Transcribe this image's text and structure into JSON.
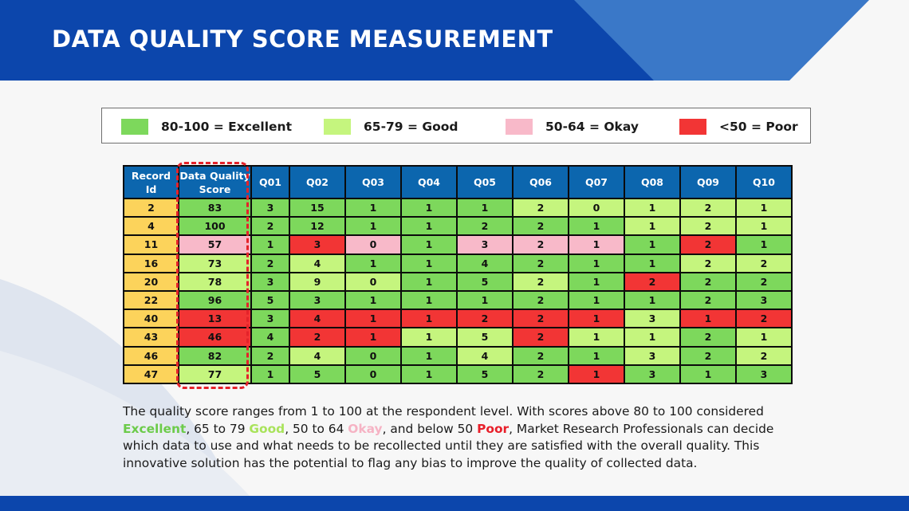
{
  "title": "DATA QUALITY SCORE MEASUREMENT",
  "colors": {
    "header_blue": "#0c46ac",
    "table_header": "#0c66ae",
    "record_id": "#fcd35b",
    "excellent": "#7dd85c",
    "good": "#c5f57e",
    "okay": "#f8b9c9",
    "poor": "#f23535",
    "highlight": "#e5222a"
  },
  "legend": [
    {
      "label": "80-100 = Excellent",
      "class": "c-ex"
    },
    {
      "label": "65-79 = Good",
      "class": "c-gd"
    },
    {
      "label": "50-64 = Okay",
      "class": "c-ok"
    },
    {
      "label": "<50 = Poor",
      "class": "c-pr"
    }
  ],
  "table": {
    "headers": [
      "Record Id",
      "Data Quality Score",
      "Q01",
      "Q02",
      "Q03",
      "Q04",
      "Q05",
      "Q06",
      "Q07",
      "Q08",
      "Q09",
      "Q10"
    ],
    "rows": [
      {
        "id": "2",
        "cells": [
          [
            "83",
            "ex"
          ],
          [
            "3",
            "ex"
          ],
          [
            "15",
            "ex"
          ],
          [
            "1",
            "ex"
          ],
          [
            "1",
            "ex"
          ],
          [
            "1",
            "ex"
          ],
          [
            "2",
            "gd"
          ],
          [
            "0",
            "gd"
          ],
          [
            "1",
            "gd"
          ],
          [
            "2",
            "gd"
          ],
          [
            "1",
            "gd"
          ]
        ]
      },
      {
        "id": "4",
        "cells": [
          [
            "100",
            "ex"
          ],
          [
            "2",
            "ex"
          ],
          [
            "12",
            "ex"
          ],
          [
            "1",
            "ex"
          ],
          [
            "1",
            "ex"
          ],
          [
            "2",
            "ex"
          ],
          [
            "2",
            "ex"
          ],
          [
            "1",
            "ex"
          ],
          [
            "1",
            "gd"
          ],
          [
            "2",
            "gd"
          ],
          [
            "1",
            "gd"
          ]
        ]
      },
      {
        "id": "11",
        "cells": [
          [
            "57",
            "ok"
          ],
          [
            "1",
            "ex"
          ],
          [
            "3",
            "pr"
          ],
          [
            "0",
            "ok"
          ],
          [
            "1",
            "ex"
          ],
          [
            "3",
            "ok"
          ],
          [
            "2",
            "ok"
          ],
          [
            "1",
            "ok"
          ],
          [
            "1",
            "ex"
          ],
          [
            "2",
            "pr"
          ],
          [
            "1",
            "ex"
          ]
        ]
      },
      {
        "id": "16",
        "cells": [
          [
            "73",
            "gd"
          ],
          [
            "2",
            "ex"
          ],
          [
            "4",
            "gd"
          ],
          [
            "1",
            "ex"
          ],
          [
            "1",
            "ex"
          ],
          [
            "4",
            "ex"
          ],
          [
            "2",
            "ex"
          ],
          [
            "1",
            "ex"
          ],
          [
            "1",
            "ex"
          ],
          [
            "2",
            "gd"
          ],
          [
            "2",
            "gd"
          ]
        ]
      },
      {
        "id": "20",
        "cells": [
          [
            "78",
            "gd"
          ],
          [
            "3",
            "ex"
          ],
          [
            "9",
            "gd"
          ],
          [
            "0",
            "gd"
          ],
          [
            "1",
            "ex"
          ],
          [
            "5",
            "ex"
          ],
          [
            "2",
            "gd"
          ],
          [
            "1",
            "ex"
          ],
          [
            "2",
            "pr"
          ],
          [
            "2",
            "ex"
          ],
          [
            "2",
            "ex"
          ]
        ]
      },
      {
        "id": "22",
        "cells": [
          [
            "96",
            "ex"
          ],
          [
            "5",
            "ex"
          ],
          [
            "3",
            "ex"
          ],
          [
            "1",
            "ex"
          ],
          [
            "1",
            "ex"
          ],
          [
            "1",
            "ex"
          ],
          [
            "2",
            "ex"
          ],
          [
            "1",
            "ex"
          ],
          [
            "1",
            "ex"
          ],
          [
            "2",
            "ex"
          ],
          [
            "3",
            "ex"
          ]
        ]
      },
      {
        "id": "40",
        "cells": [
          [
            "13",
            "pr"
          ],
          [
            "3",
            "ex"
          ],
          [
            "4",
            "pr"
          ],
          [
            "1",
            "pr"
          ],
          [
            "1",
            "pr"
          ],
          [
            "2",
            "pr"
          ],
          [
            "2",
            "pr"
          ],
          [
            "1",
            "pr"
          ],
          [
            "3",
            "gd"
          ],
          [
            "1",
            "pr"
          ],
          [
            "2",
            "pr"
          ]
        ]
      },
      {
        "id": "43",
        "cells": [
          [
            "46",
            "pr"
          ],
          [
            "4",
            "ex"
          ],
          [
            "2",
            "pr"
          ],
          [
            "1",
            "pr"
          ],
          [
            "1",
            "gd"
          ],
          [
            "5",
            "gd"
          ],
          [
            "2",
            "pr"
          ],
          [
            "1",
            "gd"
          ],
          [
            "1",
            "gd"
          ],
          [
            "2",
            "ex"
          ],
          [
            "1",
            "gd"
          ]
        ]
      },
      {
        "id": "46",
        "cells": [
          [
            "82",
            "ex"
          ],
          [
            "2",
            "ex"
          ],
          [
            "4",
            "gd"
          ],
          [
            "0",
            "ex"
          ],
          [
            "1",
            "ex"
          ],
          [
            "4",
            "gd"
          ],
          [
            "2",
            "ex"
          ],
          [
            "1",
            "ex"
          ],
          [
            "3",
            "gd"
          ],
          [
            "2",
            "ex"
          ],
          [
            "2",
            "gd"
          ]
        ]
      },
      {
        "id": "47",
        "cells": [
          [
            "77",
            "gd"
          ],
          [
            "1",
            "ex"
          ],
          [
            "5",
            "ex"
          ],
          [
            "0",
            "ex"
          ],
          [
            "1",
            "ex"
          ],
          [
            "5",
            "ex"
          ],
          [
            "2",
            "ex"
          ],
          [
            "1",
            "pr"
          ],
          [
            "3",
            "ex"
          ],
          [
            "1",
            "ex"
          ],
          [
            "3",
            "ex"
          ]
        ]
      }
    ]
  },
  "description": {
    "p1": "The quality score ranges from 1 to 100 at the respondent level. With scores above 80 to 100 considered ",
    "k_excellent": "Excellent",
    "p2": ", 65 to 79 ",
    "k_good": "Good",
    "p3": ", 50 to 64 ",
    "k_okay": "Okay",
    "p4": ", and below 50 ",
    "k_poor": "Poor",
    "p5": ", Market Research Professionals can decide which data to use and what needs to be recollected until they are satisfied with the overall quality. This innovative solution has the potential to flag any bias to improve the quality of collected data."
  }
}
